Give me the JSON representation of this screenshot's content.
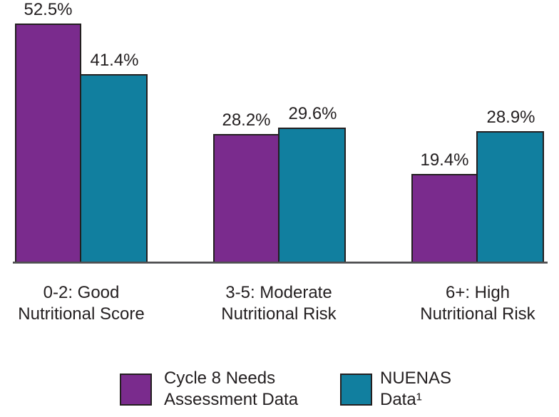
{
  "chart_data": {
    "type": "bar",
    "title": "",
    "xlabel": "",
    "ylabel": "",
    "ylim": [
      0,
      57.7
    ],
    "grid": false,
    "legend_position": "bottom",
    "value_label_format": "percent",
    "categories": [
      "0-2: Good\nNutritional Score",
      "3-5: Moderate\nNutritional Risk",
      "6+: High\nNutritional Risk"
    ],
    "series": [
      {
        "id": "cycle8-needs-assessment",
        "name": "Cycle 8 Needs\nAssessment Data",
        "color": "#7a2b8d",
        "values": [
          52.5,
          28.2,
          19.4
        ],
        "labels": [
          "52.5%",
          "28.2%",
          "19.4%"
        ]
      },
      {
        "id": "nuenas",
        "name": "NUENAS\nData¹",
        "color": "#117f9f",
        "values": [
          41.4,
          29.6,
          28.9
        ],
        "labels": [
          "41.4%",
          "29.6%",
          "28.9%"
        ]
      }
    ]
  },
  "colors": {
    "background": "#ffffff",
    "bar_outline": "#231f20",
    "axis_line": "#4d4d4f",
    "text": "#231f20"
  }
}
